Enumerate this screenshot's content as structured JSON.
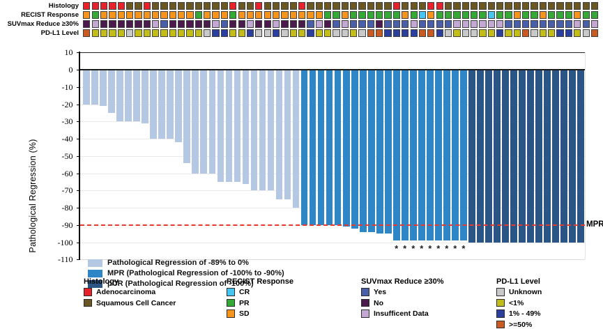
{
  "colors": {
    "track": {
      "A": "#e8212a",
      "S": "#6b5721",
      "CR": "#45c5f0",
      "PR": "#35a935",
      "SD": "#f7941e",
      "Y": "#4a5fa9",
      "N": "#4d1a4d",
      "I": "#c3a8d4",
      "U": "#c9c9c9",
      "L": "#c2be17",
      "M": "#2b3f9e",
      "H": "#c85a22"
    },
    "bar": {
      "light": "#b5c8e3",
      "mpr": "#2e86c6",
      "pcr": "#2a5585"
    },
    "mpr_line": "#e8392e",
    "grid": "#eaeaea",
    "axis": "#000000"
  },
  "tracks": [
    {
      "label": "Histology",
      "codes": [
        "A",
        "A",
        "A",
        "A",
        "A",
        "S",
        "S",
        "A",
        "S",
        "S",
        "S",
        "S",
        "S",
        "S",
        "S",
        "S",
        "S",
        "A",
        "S",
        "S",
        "A",
        "S",
        "S",
        "S",
        "S",
        "A",
        "S",
        "S",
        "S",
        "S",
        "S",
        "S",
        "S",
        "S",
        "S",
        "S",
        "A",
        "S",
        "S",
        "S",
        "A",
        "A",
        "S",
        "S",
        "S",
        "S",
        "S",
        "S",
        "S",
        "S",
        "S",
        "S",
        "S",
        "S",
        "S",
        "S",
        "S",
        "S",
        "S",
        "S"
      ]
    },
    {
      "label": "RECIST Response",
      "codes": [
        "SD",
        "PR",
        "SD",
        "SD",
        "SD",
        "SD",
        "SD",
        "SD",
        "SD",
        "SD",
        "SD",
        "SD",
        "SD",
        "PR",
        "SD",
        "SD",
        "SD",
        "PR",
        "SD",
        "SD",
        "SD",
        "SD",
        "SD",
        "SD",
        "SD",
        "SD",
        "SD",
        "SD",
        "PR",
        "PR",
        "SD",
        "PR",
        "PR",
        "PR",
        "PR",
        "PR",
        "PR",
        "SD",
        "PR",
        "CR",
        "SD",
        "PR",
        "PR",
        "PR",
        "PR",
        "PR",
        "PR",
        "CR",
        "PR",
        "PR",
        "SD",
        "PR",
        "PR",
        "SD",
        "PR",
        "PR",
        "PR",
        "SD",
        "PR",
        "PR"
      ]
    },
    {
      "label": "SUVmax Reduce ≥30%",
      "codes": [
        "N",
        "I",
        "N",
        "N",
        "N",
        "N",
        "N",
        "N",
        "I",
        "Y",
        "N",
        "N",
        "N",
        "N",
        "N",
        "I",
        "Y",
        "N",
        "N",
        "I",
        "N",
        "N",
        "I",
        "N",
        "N",
        "N",
        "Y",
        "I",
        "N",
        "Y",
        "I",
        "Y",
        "Y",
        "Y",
        "N",
        "Y",
        "Y",
        "Y",
        "I",
        "Y",
        "Y",
        "Y",
        "Y",
        "I",
        "I",
        "I",
        "I",
        "I",
        "I",
        "Y",
        "Y",
        "Y",
        "Y",
        "Y",
        "Y",
        "Y",
        "Y",
        "I",
        "Y",
        "I"
      ]
    },
    {
      "label": "PD-L1 Level",
      "codes": [
        "H",
        "L",
        "L",
        "L",
        "L",
        "U",
        "L",
        "L",
        "L",
        "L",
        "L",
        "L",
        "L",
        "L",
        "U",
        "M",
        "M",
        "L",
        "L",
        "M",
        "U",
        "U",
        "M",
        "U",
        "L",
        "L",
        "M",
        "L",
        "L",
        "U",
        "U",
        "L",
        "U",
        "H",
        "H",
        "M",
        "M",
        "M",
        "M",
        "H",
        "H",
        "M",
        "U",
        "L",
        "U",
        "U",
        "L",
        "L",
        "M",
        "L",
        "L",
        "H",
        "U",
        "L",
        "L",
        "M",
        "M",
        "L",
        "U",
        "H"
      ]
    }
  ],
  "chart_data": {
    "type": "bar",
    "title": "",
    "xlabel": "",
    "ylabel": "Pathological Regression (%)",
    "ylim": [
      -110,
      10
    ],
    "yticks": [
      10,
      0,
      -10,
      -20,
      -30,
      -40,
      -50,
      -60,
      -70,
      -80,
      -90,
      -100,
      -110
    ],
    "grid": true,
    "values": [
      -20,
      -20,
      -21,
      -25,
      -30,
      -30,
      -30,
      -31,
      -40,
      -40,
      -40,
      -42,
      -54,
      -60,
      -60,
      -60,
      -65,
      -65,
      -65,
      -66,
      -70,
      -70,
      -70,
      -75,
      -75,
      -80,
      -90,
      -90,
      -90,
      -90,
      -90,
      -91,
      -92,
      -94,
      -94,
      -95,
      -95,
      -99,
      -99,
      -99,
      -99,
      -99,
      -99,
      -99,
      -99,
      -99,
      -100,
      -100,
      -100,
      -100,
      -100,
      -100,
      -100,
      -100,
      -100,
      -100,
      -100,
      -100,
      -100,
      -100
    ],
    "segments": {
      "light_count": 26,
      "mpr_count": 20,
      "pcr_count": 14
    },
    "asterisk_bars": [
      38,
      39,
      40,
      41,
      42,
      43,
      44,
      45,
      46
    ],
    "reference_line": {
      "value": -90,
      "label": "MPR",
      "style": "dashed-red"
    },
    "legend": [
      {
        "group": "light",
        "label": "Pathological Regression of -89% to 0%"
      },
      {
        "group": "mpr",
        "label": "MPR (Pathological Regression of -100% to -90%)"
      },
      {
        "group": "pcr",
        "label": "pCR (Pathological Regression of -100%)"
      }
    ],
    "legend_position": "lower-left"
  },
  "bottom_legend": [
    {
      "title": "Histology",
      "items": [
        {
          "label": "Adenocarcinoma",
          "code": "A"
        },
        {
          "label": "Squamous Cell Cancer",
          "code": "S"
        }
      ]
    },
    {
      "title": "RECIST Response",
      "items": [
        {
          "label": "CR",
          "code": "CR"
        },
        {
          "label": "PR",
          "code": "PR"
        },
        {
          "label": "SD",
          "code": "SD"
        }
      ]
    },
    {
      "title": "SUVmax Reduce ≥30%",
      "items": [
        {
          "label": "Yes",
          "code": "Y"
        },
        {
          "label": "No",
          "code": "N"
        },
        {
          "label": "Insufficent Data",
          "code": "I"
        }
      ]
    },
    {
      "title": "PD-L1 Level",
      "items": [
        {
          "label": "Unknown",
          "code": "U"
        },
        {
          "label": "<1%",
          "code": "L"
        },
        {
          "label": "1% - 49%",
          "code": "M"
        },
        {
          "label": ">=50%",
          "code": "H"
        }
      ]
    }
  ]
}
